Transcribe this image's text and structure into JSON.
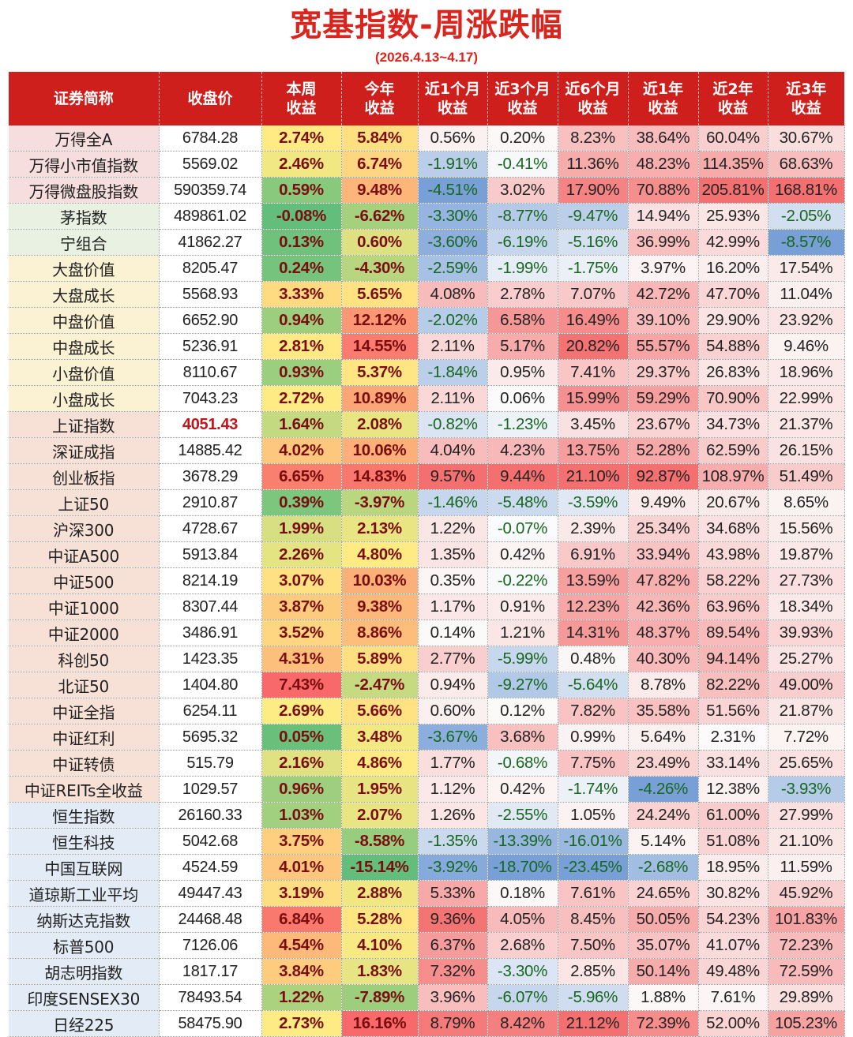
{
  "title": "宽基指数-周涨跌幅",
  "subtitle": "(2026.4.13~4.17)",
  "columns": [
    {
      "line1": "证券简称",
      "line2": ""
    },
    {
      "line1": "收盘价",
      "line2": ""
    },
    {
      "line1": "本周",
      "line2": "收益"
    },
    {
      "line1": "今年",
      "line2": "收益"
    },
    {
      "line1": "近1个月",
      "line2": "收益"
    },
    {
      "line1": "近3个月",
      "line2": "收益"
    },
    {
      "line1": "近6个月",
      "line2": "收益"
    },
    {
      "line1": "近1年",
      "line2": "收益"
    },
    {
      "line1": "近2年",
      "line2": "收益"
    },
    {
      "line1": "近3年",
      "line2": "收益"
    }
  ],
  "colors": {
    "title_red": "#d9251d",
    "header_red": "#cf1f1c",
    "highlight_close": "#c0161b"
  },
  "rows": [
    {
      "name": "万得全A",
      "close": "6784.28",
      "week": "2.74%",
      "ytd": "5.84%",
      "m1": "0.56%",
      "m3": "0.20%",
      "m6": "8.23%",
      "y1": "38.64%",
      "y2": "60.04%",
      "y3": "30.67%"
    },
    {
      "name": "万得小市值指数",
      "close": "5569.02",
      "week": "2.46%",
      "ytd": "6.74%",
      "m1": "-1.91%",
      "m3": "-0.41%",
      "m6": "11.36%",
      "y1": "48.23%",
      "y2": "114.35%",
      "y3": "68.63%"
    },
    {
      "name": "万得微盘股指数",
      "close": "590359.74",
      "week": "0.59%",
      "ytd": "9.48%",
      "m1": "-4.51%",
      "m3": "3.02%",
      "m6": "17.90%",
      "y1": "70.88%",
      "y2": "205.81%",
      "y3": "168.81%"
    },
    {
      "name": "茅指数",
      "close": "489861.02",
      "week": "-0.08%",
      "ytd": "-6.62%",
      "m1": "-3.30%",
      "m3": "-8.77%",
      "m6": "-9.47%",
      "y1": "14.94%",
      "y2": "25.93%",
      "y3": "-2.05%"
    },
    {
      "name": "宁组合",
      "close": "41862.27",
      "week": "0.13%",
      "ytd": "0.60%",
      "m1": "-3.60%",
      "m3": "-6.19%",
      "m6": "-5.16%",
      "y1": "36.99%",
      "y2": "42.99%",
      "y3": "-8.57%"
    },
    {
      "name": "大盘价值",
      "close": "8205.47",
      "week": "0.24%",
      "ytd": "-4.30%",
      "m1": "-2.59%",
      "m3": "-1.99%",
      "m6": "-1.75%",
      "y1": "3.97%",
      "y2": "16.20%",
      "y3": "17.54%"
    },
    {
      "name": "大盘成长",
      "close": "5568.93",
      "week": "3.33%",
      "ytd": "5.65%",
      "m1": "4.08%",
      "m3": "2.78%",
      "m6": "7.07%",
      "y1": "42.72%",
      "y2": "47.70%",
      "y3": "11.04%"
    },
    {
      "name": "中盘价值",
      "close": "6652.90",
      "week": "0.94%",
      "ytd": "12.12%",
      "m1": "-2.02%",
      "m3": "6.58%",
      "m6": "16.49%",
      "y1": "39.10%",
      "y2": "29.90%",
      "y3": "23.92%"
    },
    {
      "name": "中盘成长",
      "close": "5236.91",
      "week": "2.81%",
      "ytd": "14.55%",
      "m1": "2.11%",
      "m3": "5.17%",
      "m6": "20.82%",
      "y1": "55.57%",
      "y2": "54.88%",
      "y3": "9.46%"
    },
    {
      "name": "小盘价值",
      "close": "8110.67",
      "week": "0.93%",
      "ytd": "5.37%",
      "m1": "-1.84%",
      "m3": "0.95%",
      "m6": "7.41%",
      "y1": "29.37%",
      "y2": "26.83%",
      "y3": "18.96%"
    },
    {
      "name": "小盘成长",
      "close": "7043.23",
      "week": "2.72%",
      "ytd": "10.89%",
      "m1": "2.11%",
      "m3": "0.06%",
      "m6": "15.99%",
      "y1": "59.29%",
      "y2": "70.90%",
      "y3": "22.99%"
    },
    {
      "name": "上证指数",
      "close": "4051.43",
      "close_highlight": true,
      "week": "1.64%",
      "ytd": "2.08%",
      "m1": "-0.82%",
      "m3": "-1.23%",
      "m6": "3.45%",
      "y1": "23.67%",
      "y2": "34.73%",
      "y3": "21.37%"
    },
    {
      "name": "深证成指",
      "close": "14885.42",
      "week": "4.02%",
      "ytd": "10.06%",
      "m1": "4.04%",
      "m3": "4.23%",
      "m6": "13.75%",
      "y1": "52.28%",
      "y2": "62.59%",
      "y3": "26.15%"
    },
    {
      "name": "创业板指",
      "close": "3678.29",
      "week": "6.65%",
      "ytd": "14.83%",
      "m1": "9.57%",
      "m3": "9.44%",
      "m6": "21.10%",
      "y1": "92.87%",
      "y2": "108.97%",
      "y3": "51.49%"
    },
    {
      "name": "上证50",
      "close": "2910.87",
      "week": "0.39%",
      "ytd": "-3.97%",
      "m1": "-1.46%",
      "m3": "-5.48%",
      "m6": "-3.59%",
      "y1": "9.49%",
      "y2": "20.67%",
      "y3": "8.65%"
    },
    {
      "name": "沪深300",
      "close": "4728.67",
      "week": "1.99%",
      "ytd": "2.13%",
      "m1": "1.22%",
      "m3": "-0.07%",
      "m6": "2.39%",
      "y1": "25.34%",
      "y2": "34.68%",
      "y3": "15.56%"
    },
    {
      "name": "中证A500",
      "close": "5913.84",
      "week": "2.26%",
      "ytd": "4.80%",
      "m1": "1.35%",
      "m3": "0.42%",
      "m6": "6.91%",
      "y1": "33.94%",
      "y2": "43.98%",
      "y3": "19.87%"
    },
    {
      "name": "中证500",
      "close": "8214.19",
      "week": "3.07%",
      "ytd": "10.03%",
      "m1": "0.35%",
      "m3": "-0.22%",
      "m6": "13.59%",
      "y1": "47.82%",
      "y2": "58.22%",
      "y3": "27.73%"
    },
    {
      "name": "中证1000",
      "close": "8307.44",
      "week": "3.87%",
      "ytd": "9.38%",
      "m1": "1.17%",
      "m3": "0.91%",
      "m6": "12.23%",
      "y1": "42.36%",
      "y2": "63.96%",
      "y3": "18.34%"
    },
    {
      "name": "中证2000",
      "close": "3486.91",
      "week": "3.52%",
      "ytd": "8.86%",
      "m1": "0.14%",
      "m3": "1.21%",
      "m6": "14.31%",
      "y1": "48.37%",
      "y2": "89.54%",
      "y3": "39.93%"
    },
    {
      "name": "科创50",
      "close": "1423.35",
      "week": "4.31%",
      "ytd": "5.89%",
      "m1": "2.77%",
      "m3": "-5.99%",
      "m6": "0.48%",
      "y1": "40.30%",
      "y2": "94.14%",
      "y3": "25.27%"
    },
    {
      "name": "北证50",
      "close": "1404.80",
      "week": "7.43%",
      "ytd": "-2.47%",
      "m1": "0.94%",
      "m3": "-9.27%",
      "m6": "-5.64%",
      "y1": "8.78%",
      "y2": "82.22%",
      "y3": "49.00%"
    },
    {
      "name": "中证全指",
      "close": "6254.11",
      "week": "2.69%",
      "ytd": "5.66%",
      "m1": "0.60%",
      "m3": "0.12%",
      "m6": "7.82%",
      "y1": "35.58%",
      "y2": "51.56%",
      "y3": "21.87%"
    },
    {
      "name": "中证红利",
      "close": "5695.32",
      "week": "0.05%",
      "ytd": "3.48%",
      "m1": "-3.67%",
      "m3": "3.68%",
      "m6": "0.99%",
      "y1": "5.64%",
      "y2": "2.31%",
      "y3": "7.72%"
    },
    {
      "name": "中证转债",
      "close": "515.79",
      "week": "2.16%",
      "ytd": "4.86%",
      "m1": "1.77%",
      "m3": "-0.68%",
      "m6": "7.75%",
      "y1": "23.49%",
      "y2": "33.14%",
      "y3": "25.65%"
    },
    {
      "name": "中证REITs全收益",
      "close": "1029.57",
      "week": "0.96%",
      "ytd": "1.95%",
      "m1": "1.12%",
      "m3": "0.42%",
      "m6": "-1.74%",
      "y1": "-4.26%",
      "y2": "12.38%",
      "y3": "-3.93%"
    },
    {
      "name": "恒生指数",
      "close": "26160.33",
      "week": "1.03%",
      "ytd": "2.07%",
      "m1": "1.26%",
      "m3": "-2.55%",
      "m6": "1.05%",
      "y1": "24.24%",
      "y2": "61.00%",
      "y3": "27.99%"
    },
    {
      "name": "恒生科技",
      "close": "5042.68",
      "week": "3.75%",
      "ytd": "-8.58%",
      "m1": "-1.35%",
      "m3": "-13.39%",
      "m6": "-16.01%",
      "y1": "5.14%",
      "y2": "51.08%",
      "y3": "21.10%"
    },
    {
      "name": "中国互联网",
      "close": "4524.59",
      "week": "4.01%",
      "ytd": "-15.14%",
      "m1": "-3.92%",
      "m3": "-18.70%",
      "m6": "-23.45%",
      "y1": "-2.68%",
      "y2": "18.95%",
      "y3": "11.59%"
    },
    {
      "name": "道琼斯工业平均",
      "close": "49447.43",
      "week": "3.19%",
      "ytd": "2.88%",
      "m1": "5.33%",
      "m3": "0.18%",
      "m6": "7.61%",
      "y1": "24.65%",
      "y2": "30.82%",
      "y3": "45.92%"
    },
    {
      "name": "纳斯达克指数",
      "close": "24468.48",
      "week": "6.84%",
      "ytd": "5.28%",
      "m1": "9.36%",
      "m3": "4.05%",
      "m6": "8.45%",
      "y1": "50.05%",
      "y2": "54.23%",
      "y3": "101.83%"
    },
    {
      "name": "标普500",
      "close": "7126.06",
      "week": "4.54%",
      "ytd": "4.10%",
      "m1": "6.37%",
      "m3": "2.68%",
      "m6": "7.50%",
      "y1": "35.07%",
      "y2": "41.07%",
      "y3": "72.23%"
    },
    {
      "name": "胡志明指数",
      "close": "1817.17",
      "week": "3.84%",
      "ytd": "1.83%",
      "m1": "7.32%",
      "m3": "-3.30%",
      "m6": "2.85%",
      "y1": "50.14%",
      "y2": "49.48%",
      "y3": "72.59%"
    },
    {
      "name": "印度SENSEX30",
      "close": "78493.54",
      "week": "1.22%",
      "ytd": "-7.89%",
      "m1": "3.96%",
      "m3": "-6.07%",
      "m6": "-5.96%",
      "y1": "1.88%",
      "y2": "7.61%",
      "y3": "29.89%"
    },
    {
      "name": "日经225",
      "close": "58475.90",
      "week": "2.73%",
      "ytd": "16.16%",
      "m1": "8.79%",
      "m3": "8.42%",
      "m6": "21.12%",
      "y1": "72.39%",
      "y2": "52.00%",
      "y3": "105.23%"
    }
  ]
}
